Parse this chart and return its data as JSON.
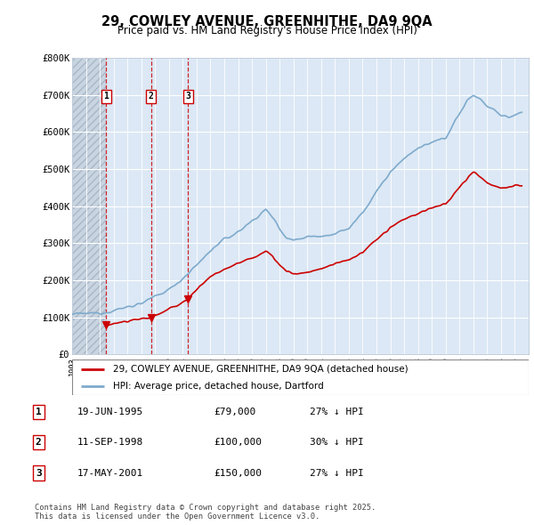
{
  "title": "29, COWLEY AVENUE, GREENHITHE, DA9 9QA",
  "subtitle": "Price paid vs. HM Land Registry's House Price Index (HPI)",
  "background_color": "#ffffff",
  "plot_bg_color": "#dce8f5",
  "hatch_color": "#b8c8d8",
  "grid_color": "#ffffff",
  "ylim": [
    0,
    800000
  ],
  "yticks": [
    0,
    100000,
    200000,
    300000,
    400000,
    500000,
    600000,
    700000,
    800000
  ],
  "ytick_labels": [
    "£0",
    "£100K",
    "£200K",
    "£300K",
    "£400K",
    "£500K",
    "£600K",
    "£700K",
    "£800K"
  ],
  "purchases": [
    {
      "date": 1995.47,
      "price": 79000,
      "label": "1"
    },
    {
      "date": 1998.7,
      "price": 100000,
      "label": "2"
    },
    {
      "date": 2001.38,
      "price": 150000,
      "label": "3"
    }
  ],
  "purchase_color": "#cc0000",
  "hpi_color": "#7eaacc",
  "property_color": "#cc0000",
  "legend_entries": [
    "29, COWLEY AVENUE, GREENHITHE, DA9 9QA (detached house)",
    "HPI: Average price, detached house, Dartford"
  ],
  "table_rows": [
    {
      "num": "1",
      "date": "19-JUN-1995",
      "price": "£79,000",
      "hpi": "27% ↓ HPI"
    },
    {
      "num": "2",
      "date": "11-SEP-1998",
      "price": "£100,000",
      "hpi": "30% ↓ HPI"
    },
    {
      "num": "3",
      "date": "17-MAY-2001",
      "price": "£150,000",
      "hpi": "27% ↓ HPI"
    }
  ],
  "footnote": "Contains HM Land Registry data © Crown copyright and database right 2025.\nThis data is licensed under the Open Government Licence v3.0.",
  "xmin": 1993,
  "xmax": 2026
}
